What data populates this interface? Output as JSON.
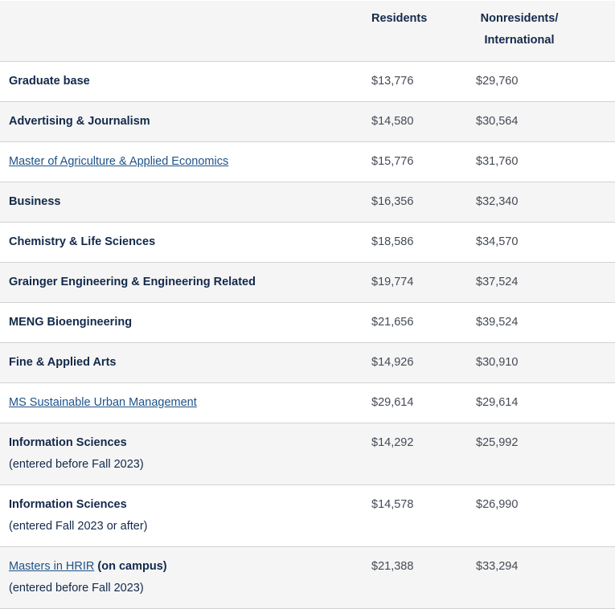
{
  "header": {
    "program": "",
    "residents": "Residents",
    "nonresidents_line1": "Nonresidents/",
    "nonresidents_line2": "International"
  },
  "rows": [
    {
      "program": "Graduate base",
      "residents": "$13,776",
      "nonresidents": "$29,760"
    },
    {
      "program": "Advertising & Journalism",
      "residents": "$14,580",
      "nonresidents": "$30,564"
    },
    {
      "program": "Master of Agriculture & Applied Economics",
      "residents": "$15,776",
      "nonresidents": "$31,760"
    },
    {
      "program": "Business",
      "residents": "$16,356",
      "nonresidents": "$32,340"
    },
    {
      "program": "Chemistry & Life Sciences",
      "residents": "$18,586",
      "nonresidents": "$34,570"
    },
    {
      "program": "Grainger Engineering & Engineering Related",
      "residents": "$19,774",
      "nonresidents": "$37,524"
    },
    {
      "program": "MENG Bioengineering",
      "residents": "$21,656",
      "nonresidents": "$39,524"
    },
    {
      "program": "Fine & Applied Arts",
      "residents": "$14,926",
      "nonresidents": "$30,910"
    },
    {
      "program": "MS Sustainable Urban Management",
      "residents": "$29,614",
      "nonresidents": "$29,614"
    },
    {
      "program": "Information Sciences",
      "note": "(entered before Fall 2023)",
      "residents": "$14,292",
      "nonresidents": "$25,992"
    },
    {
      "program": "Information Sciences",
      "note": "(entered Fall 2023 or after)",
      "residents": "$14,578",
      "nonresidents": "$26,990"
    },
    {
      "program_link": "Masters in HRIR",
      "program_suffix": " (on campus)",
      "note": "(entered before Fall 2023)",
      "residents": "$21,388",
      "nonresidents": "$33,294"
    }
  ]
}
